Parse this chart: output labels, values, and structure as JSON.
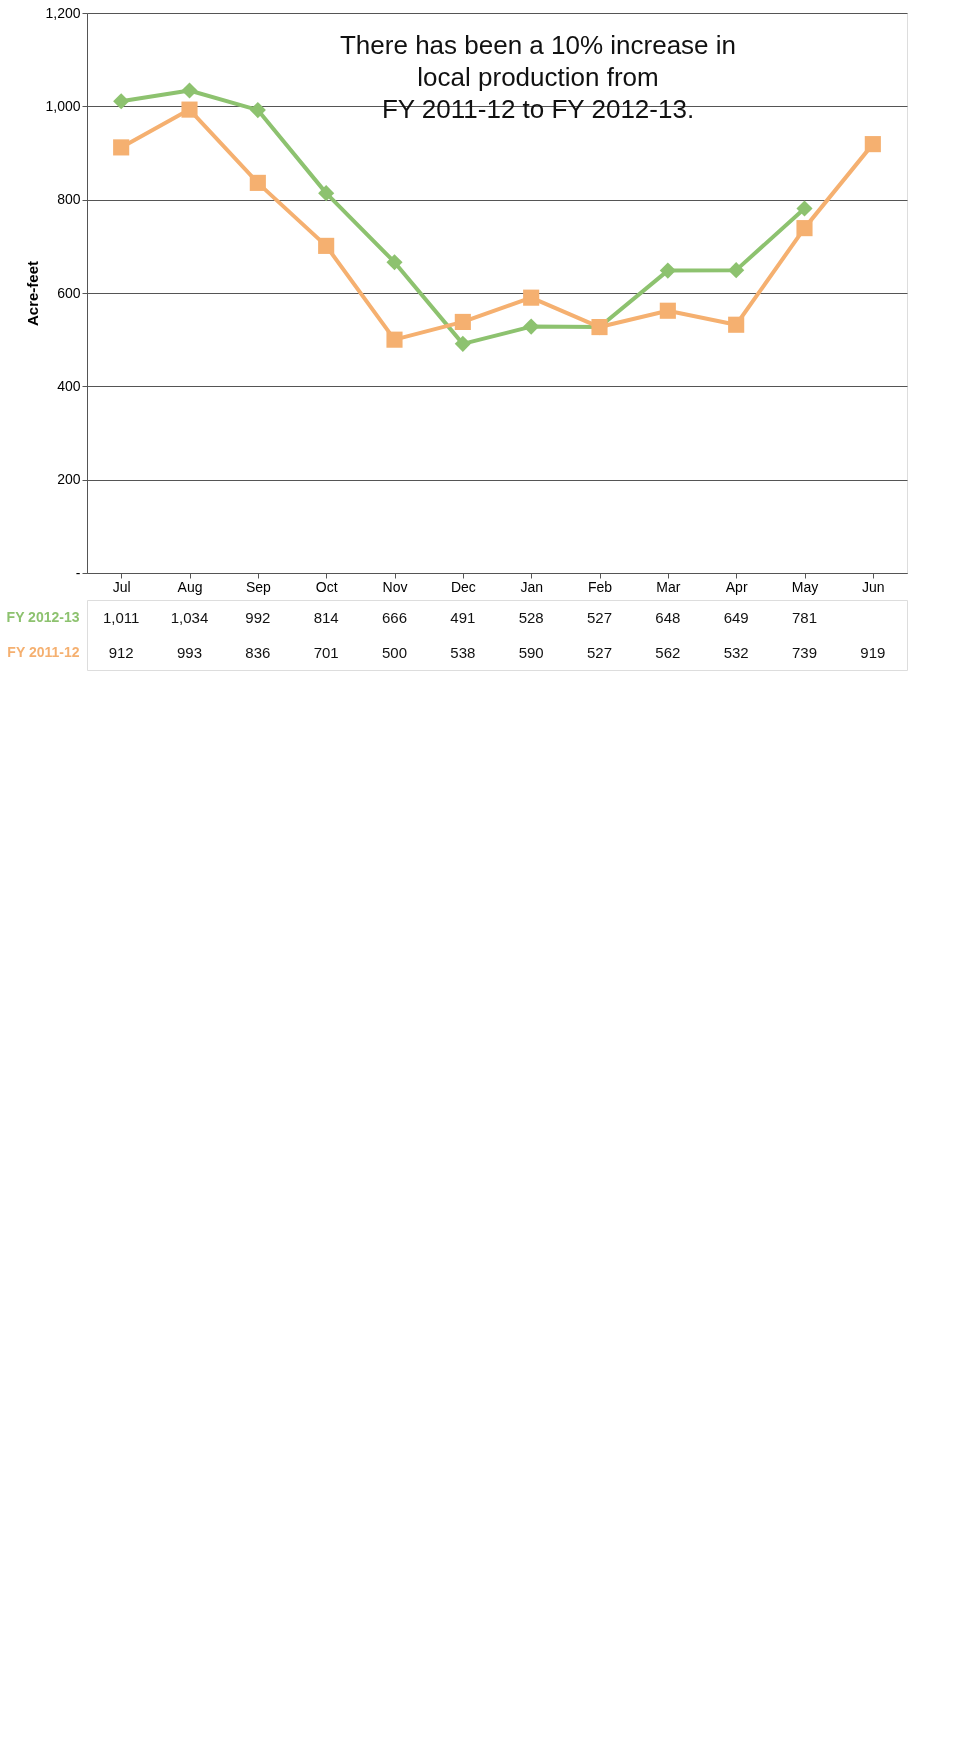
{
  "chart_data": {
    "type": "line",
    "ylabel": "Acre-feet",
    "annotations": [
      "There has been a 10% increase in\nlocal production from\nFY 2011-12 to FY 2012-13."
    ],
    "categories": [
      "Jul",
      "Aug",
      "Sep",
      "Oct",
      "Nov",
      "Dec",
      "Jan",
      "Feb",
      "Mar",
      "Apr",
      "May",
      "Jun"
    ],
    "series": [
      {
        "name": "FY 2012-13",
        "color": "#8dc26f",
        "marker": "diamond",
        "values": [
          1011,
          1034,
          992,
          814,
          666,
          491,
          528,
          527,
          648,
          649,
          781,
          null
        ],
        "value_labels": [
          "1,011",
          "1,034",
          "992",
          "814",
          "666",
          "491",
          "528",
          "527",
          "648",
          "649",
          "781",
          null
        ]
      },
      {
        "name": "FY 2011-12",
        "color": "#f5b070",
        "marker": "square",
        "values": [
          912,
          993,
          836,
          701,
          500,
          538,
          590,
          527,
          562,
          532,
          739,
          919
        ],
        "value_labels": [
          "912",
          "993",
          "836",
          "701",
          "500",
          "538",
          "590",
          "527",
          "562",
          "532",
          "739",
          "919"
        ]
      }
    ],
    "ylim": [
      0,
      1200
    ],
    "yticks": [
      {
        "value": 0,
        "label": "-"
      },
      200,
      400,
      600,
      800,
      {
        "value": 1000,
        "label": "1,000"
      },
      {
        "value": 1200,
        "label": "1,200"
      }
    ],
    "grid": "y",
    "legend": "bottom"
  }
}
